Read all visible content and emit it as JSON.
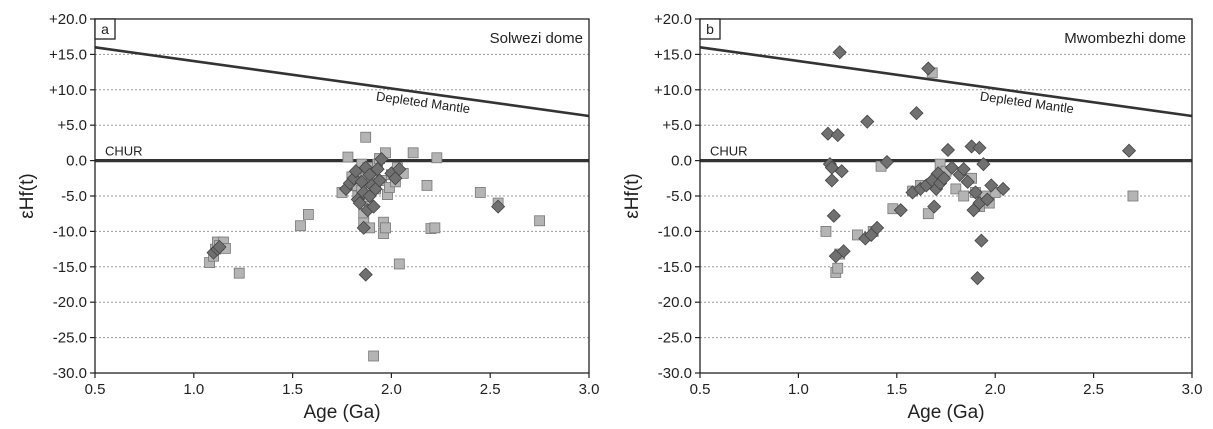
{
  "chart_data": [
    {
      "type": "scatter",
      "panel_letter": "a",
      "title": "Solwezi dome",
      "xlabel": "Age (Ga)",
      "ylabel": "εHf(t)",
      "xlim": [
        0.5,
        3.0
      ],
      "ylim": [
        -30,
        20
      ],
      "x_ticks": [
        "0.5",
        "1.0",
        "1.5",
        "2.0",
        "2.5",
        "3.0"
      ],
      "y_ticks": [
        "+20.0",
        "+15.0",
        "+10.0",
        "+5.0",
        "0.0",
        "-5.0",
        "-10.0",
        "-15.0",
        "-20.0",
        "-25.0",
        "-30.0"
      ],
      "grid": "horizontal-dotted",
      "reference_lines": [
        {
          "label": "CHUR",
          "x": [
            0.5,
            3.0
          ],
          "y": [
            0,
            0
          ]
        },
        {
          "label": "Depleted Mantle",
          "x": [
            0.5,
            3.0
          ],
          "y": [
            16.0,
            6.3
          ]
        }
      ],
      "series": [
        {
          "marker": "square",
          "color": "#b4b4b4",
          "points": [
            [
              1.08,
              -14.4
            ],
            [
              1.1,
              -13.5
            ],
            [
              1.11,
              -12.5
            ],
            [
              1.12,
              -11.5
            ],
            [
              1.13,
              -12.0
            ],
            [
              1.15,
              -11.5
            ],
            [
              1.16,
              -12.4
            ],
            [
              1.23,
              -15.9
            ],
            [
              1.54,
              -9.2
            ],
            [
              1.58,
              -7.6
            ],
            [
              1.75,
              -4.5
            ],
            [
              1.78,
              0.5
            ],
            [
              1.8,
              -2.3
            ],
            [
              1.82,
              -3.5
            ],
            [
              1.83,
              -5.0
            ],
            [
              1.84,
              -1.5
            ],
            [
              1.85,
              -0.5
            ],
            [
              1.85,
              -4.2
            ],
            [
              1.86,
              -7.5
            ],
            [
              1.86,
              -8.8
            ],
            [
              1.87,
              -2.5
            ],
            [
              1.87,
              3.3
            ],
            [
              1.88,
              -1.0
            ],
            [
              1.88,
              -5.5
            ],
            [
              1.89,
              -9.5
            ],
            [
              1.89,
              -6.5
            ],
            [
              1.9,
              -3.0
            ],
            [
              1.9,
              -1.8
            ],
            [
              1.91,
              -27.6
            ],
            [
              1.92,
              -4.0
            ],
            [
              1.93,
              -0.5
            ],
            [
              1.94,
              0.3
            ],
            [
              1.95,
              -2.8
            ],
            [
              1.96,
              -8.7
            ],
            [
              1.96,
              -10.3
            ],
            [
              1.97,
              -9.5
            ],
            [
              1.97,
              1.1
            ],
            [
              1.98,
              -4.8
            ],
            [
              1.99,
              -3.8
            ],
            [
              2.0,
              -2.0
            ],
            [
              2.02,
              -3.0
            ],
            [
              2.03,
              -1.0
            ],
            [
              2.04,
              -14.6
            ],
            [
              2.06,
              -1.8
            ],
            [
              2.11,
              1.1
            ],
            [
              2.18,
              -3.5
            ],
            [
              2.2,
              -9.6
            ],
            [
              2.22,
              -9.5
            ],
            [
              2.23,
              0.4
            ],
            [
              2.45,
              -4.5
            ],
            [
              2.54,
              -6.0
            ],
            [
              2.75,
              -8.5
            ]
          ]
        },
        {
          "marker": "diamond",
          "color": "#707070",
          "points": [
            [
              1.1,
              -13.0
            ],
            [
              1.12,
              -12.5
            ],
            [
              1.13,
              -12.2
            ],
            [
              1.77,
              -4.0
            ],
            [
              1.79,
              -3.2
            ],
            [
              1.81,
              -2.5
            ],
            [
              1.82,
              -1.5
            ],
            [
              1.83,
              -5.5
            ],
            [
              1.84,
              -6.0
            ],
            [
              1.85,
              -3.0
            ],
            [
              1.86,
              -4.5
            ],
            [
              1.86,
              -9.5
            ],
            [
              1.87,
              -16.1
            ],
            [
              1.87,
              -1.0
            ],
            [
              1.88,
              -7.0
            ],
            [
              1.89,
              -2.0
            ],
            [
              1.89,
              -5.0
            ],
            [
              1.9,
              -3.5
            ],
            [
              1.91,
              -6.5
            ],
            [
              1.92,
              -4.0
            ],
            [
              1.93,
              -1.2
            ],
            [
              1.94,
              -2.8
            ],
            [
              1.95,
              0.2
            ],
            [
              2.0,
              -1.8
            ],
            [
              2.02,
              -2.5
            ],
            [
              2.04,
              -1.2
            ],
            [
              2.54,
              -6.5
            ]
          ]
        }
      ]
    },
    {
      "type": "scatter",
      "panel_letter": "b",
      "title": "Mwombezhi dome",
      "xlabel": "Age (Ga)",
      "ylabel": "εHf(t)",
      "xlim": [
        0.5,
        3.0
      ],
      "ylim": [
        -30,
        20
      ],
      "x_ticks": [
        "0.5",
        "1.0",
        "1.5",
        "2.0",
        "2.5",
        "3.0"
      ],
      "y_ticks": [
        "+20.0",
        "+15.0",
        "+10.0",
        "+5.0",
        "0.0",
        "-5.0",
        "-10.0",
        "-15.0",
        "-20.0",
        "-25.0",
        "-30.0"
      ],
      "grid": "horizontal-dotted",
      "reference_lines": [
        {
          "label": "CHUR",
          "x": [
            0.5,
            3.0
          ],
          "y": [
            0,
            0
          ]
        },
        {
          "label": "Depleted Mantle",
          "x": [
            0.5,
            3.0
          ],
          "y": [
            16.0,
            6.3
          ]
        }
      ],
      "series": [
        {
          "marker": "square",
          "color": "#b4b4b4",
          "points": [
            [
              1.14,
              -10.0
            ],
            [
              1.19,
              -15.8
            ],
            [
              1.2,
              -15.2
            ],
            [
              1.21,
              -13.2
            ],
            [
              1.3,
              -10.5
            ],
            [
              1.38,
              -10.0
            ],
            [
              1.42,
              -0.8
            ],
            [
              1.48,
              -6.8
            ],
            [
              1.58,
              -4.3
            ],
            [
              1.62,
              -3.5
            ],
            [
              1.66,
              -7.5
            ],
            [
              1.68,
              12.4
            ],
            [
              1.7,
              -2.5
            ],
            [
              1.72,
              -0.5
            ],
            [
              1.75,
              -1.5
            ],
            [
              1.8,
              -4.0
            ],
            [
              1.84,
              -5.0
            ],
            [
              1.88,
              -2.5
            ],
            [
              1.9,
              -4.5
            ],
            [
              1.92,
              -6.5
            ],
            [
              1.95,
              -5.0
            ],
            [
              1.97,
              -6.0
            ],
            [
              2.0,
              -4.5
            ],
            [
              2.7,
              -5.0
            ]
          ]
        },
        {
          "marker": "diamond",
          "color": "#707070",
          "points": [
            [
              1.15,
              3.8
            ],
            [
              1.16,
              -0.5
            ],
            [
              1.17,
              -2.8
            ],
            [
              1.17,
              -1.0
            ],
            [
              1.18,
              -7.8
            ],
            [
              1.19,
              -13.5
            ],
            [
              1.2,
              3.6
            ],
            [
              1.21,
              15.3
            ],
            [
              1.22,
              -1.5
            ],
            [
              1.23,
              -12.8
            ],
            [
              1.34,
              -11.0
            ],
            [
              1.35,
              5.5
            ],
            [
              1.37,
              -10.5
            ],
            [
              1.4,
              -9.5
            ],
            [
              1.45,
              -0.2
            ],
            [
              1.52,
              -7.0
            ],
            [
              1.58,
              -4.5
            ],
            [
              1.6,
              6.7
            ],
            [
              1.62,
              -4.0
            ],
            [
              1.65,
              -3.5
            ],
            [
              1.66,
              13.0
            ],
            [
              1.68,
              -2.8
            ],
            [
              1.69,
              -6.5
            ],
            [
              1.7,
              -4.0
            ],
            [
              1.71,
              -1.8
            ],
            [
              1.72,
              -3.2
            ],
            [
              1.74,
              -2.5
            ],
            [
              1.76,
              1.5
            ],
            [
              1.78,
              -1.0
            ],
            [
              1.82,
              -2.0
            ],
            [
              1.84,
              -1.2
            ],
            [
              1.86,
              -3.0
            ],
            [
              1.88,
              2.0
            ],
            [
              1.89,
              -7.0
            ],
            [
              1.9,
              -4.5
            ],
            [
              1.91,
              -16.6
            ],
            [
              1.92,
              -6.0
            ],
            [
              1.92,
              1.8
            ],
            [
              1.93,
              -11.3
            ],
            [
              1.94,
              -0.5
            ],
            [
              1.96,
              -5.5
            ],
            [
              1.98,
              -3.5
            ],
            [
              2.04,
              -4.0
            ],
            [
              2.68,
              1.4
            ]
          ]
        }
      ]
    }
  ]
}
